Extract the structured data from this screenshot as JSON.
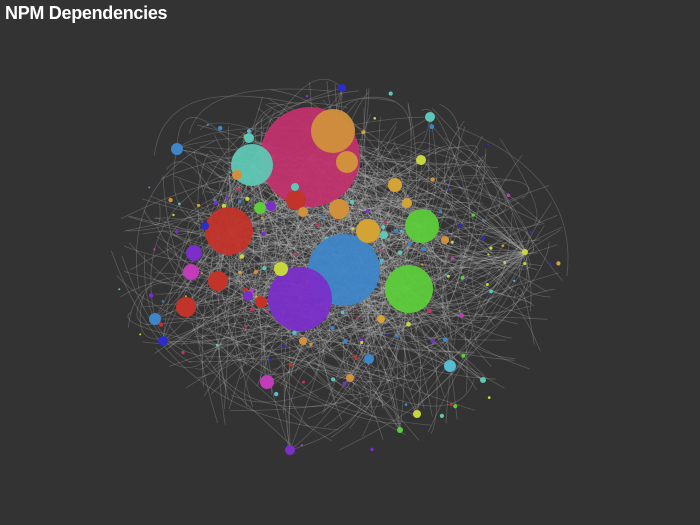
{
  "header": {
    "title": "NPM Dependencies"
  },
  "colors": {
    "background": "#333333",
    "link": "#bdbdbd",
    "palette": [
      "#c0336d",
      "#d1913c",
      "#5fc7b5",
      "#3f86c9",
      "#7a2fc9",
      "#5ccc3a",
      "#c23329",
      "#d4a335",
      "#c23bb9",
      "#2c2cc9",
      "#c8d63e",
      "#56bcd1"
    ]
  },
  "graph": {
    "nodes": [
      {
        "id": "n1",
        "r": 50,
        "c": 0
      },
      {
        "id": "n2",
        "r": 22,
        "c": 1
      },
      {
        "id": "n3",
        "r": 11,
        "c": 1
      },
      {
        "id": "n4",
        "r": 21,
        "c": 2
      },
      {
        "id": "n5",
        "r": 5,
        "c": 1
      },
      {
        "id": "n6",
        "r": 5,
        "c": 2
      },
      {
        "id": "n7",
        "r": 6,
        "c": 3
      },
      {
        "id": "n8",
        "r": 10,
        "c": 6
      },
      {
        "id": "n9",
        "r": 4,
        "c": 2
      },
      {
        "id": "n10",
        "r": 10,
        "c": 1
      },
      {
        "id": "n11",
        "r": 5,
        "c": 4
      },
      {
        "id": "n12",
        "r": 6,
        "c": 5
      },
      {
        "id": "n13",
        "r": 12,
        "c": 7
      },
      {
        "id": "n14",
        "r": 5,
        "c": 1
      },
      {
        "id": "n15",
        "r": 36,
        "c": 3
      },
      {
        "id": "n16",
        "r": 32,
        "c": 4
      },
      {
        "id": "n17",
        "r": 24,
        "c": 5
      },
      {
        "id": "n18",
        "r": 17,
        "c": 5
      },
      {
        "id": "n19",
        "r": 24,
        "c": 6
      },
      {
        "id": "n20",
        "r": 8,
        "c": 4
      },
      {
        "id": "n21",
        "r": 8,
        "c": 8
      },
      {
        "id": "n22",
        "r": 10,
        "c": 6
      },
      {
        "id": "n23",
        "r": 10,
        "c": 6
      },
      {
        "id": "n24",
        "r": 7,
        "c": 10
      },
      {
        "id": "n25",
        "r": 6,
        "c": 6
      },
      {
        "id": "n26",
        "r": 5,
        "c": 4
      },
      {
        "id": "n27",
        "r": 6,
        "c": 3
      },
      {
        "id": "n28",
        "r": 5,
        "c": 9
      },
      {
        "id": "n29",
        "r": 7,
        "c": 8
      },
      {
        "id": "n30",
        "r": 7,
        "c": 7
      },
      {
        "id": "n31",
        "r": 5,
        "c": 10
      },
      {
        "id": "n32",
        "r": 5,
        "c": 7
      },
      {
        "id": "n33",
        "r": 5,
        "c": 3
      },
      {
        "id": "n34",
        "r": 6,
        "c": 11
      },
      {
        "id": "n35",
        "r": 4,
        "c": 7
      },
      {
        "id": "n36",
        "r": 4,
        "c": 10
      },
      {
        "id": "n37",
        "r": 4,
        "c": 1
      },
      {
        "id": "n38",
        "r": 4,
        "c": 9
      },
      {
        "id": "n39",
        "r": 4,
        "c": 2
      },
      {
        "id": "n40",
        "r": 3,
        "c": 10
      },
      {
        "id": "n41",
        "r": 4,
        "c": 1
      },
      {
        "id": "n42",
        "r": 5,
        "c": 2
      },
      {
        "id": "n43",
        "r": 4,
        "c": 9
      },
      {
        "id": "n44",
        "r": 5,
        "c": 4
      },
      {
        "id": "n45",
        "r": 3,
        "c": 2
      },
      {
        "id": "n46",
        "r": 3,
        "c": 5
      },
      {
        "id": "n47",
        "r": 4,
        "c": 1
      }
    ]
  }
}
